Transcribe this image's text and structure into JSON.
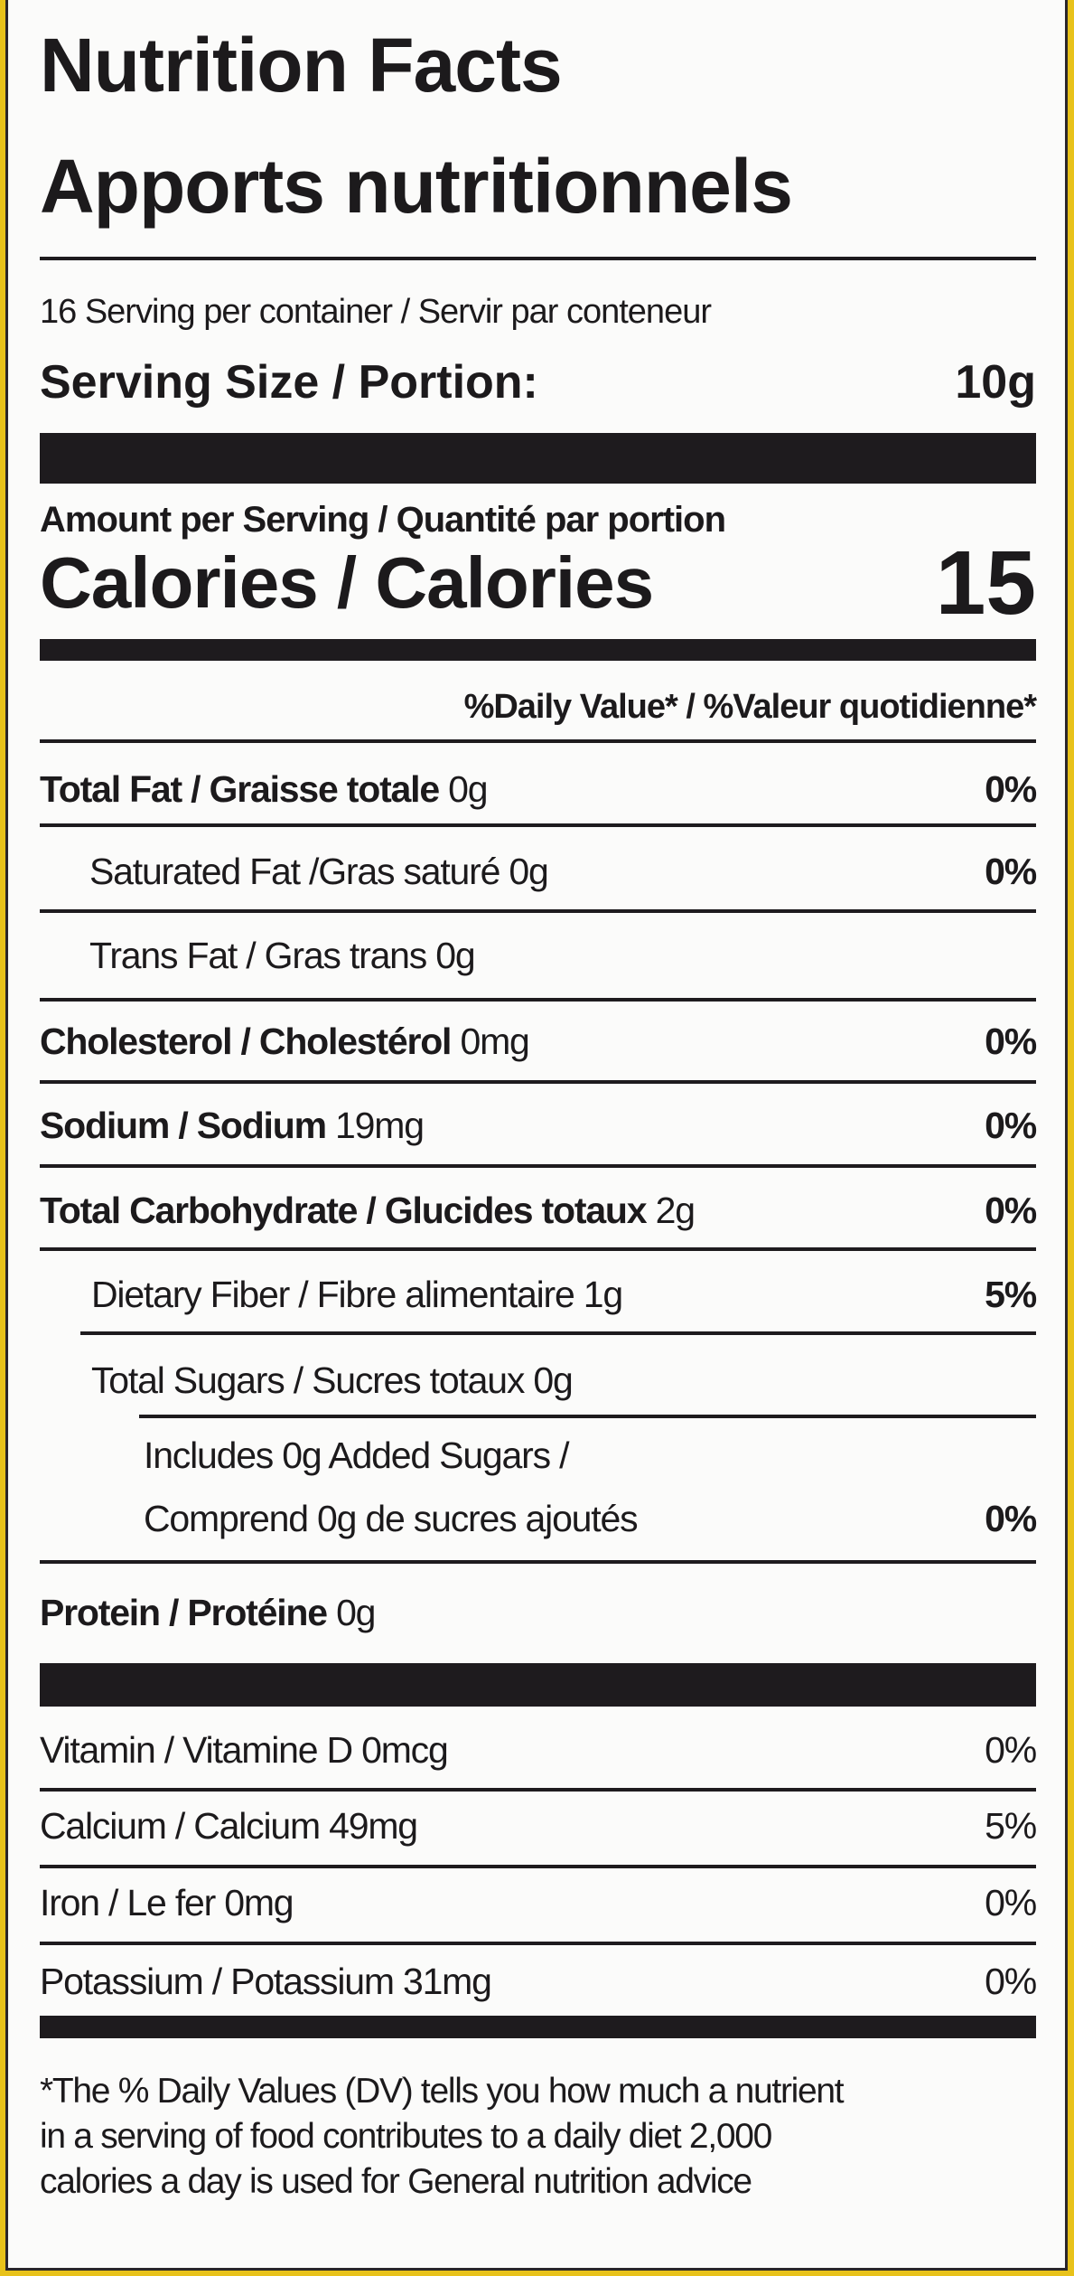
{
  "header": {
    "title_en": "Nutrition Facts",
    "title_fr": "Apports nutritionnels"
  },
  "serving": {
    "per_container": "16 Serving per container / Servir par conteneur",
    "size_label": "Serving Size / Portion:",
    "size_value": "10g"
  },
  "calories": {
    "amount_label": "Amount per Serving / Quantité par portion",
    "label": "Calories / Calories",
    "value": "15"
  },
  "dv_header": "%Daily Value* / %Valeur quotidienne*",
  "nutrients": [
    {
      "label": "Total Fat / Graisse totale",
      "amount": "0g",
      "dv": "0%"
    },
    {
      "label": "Saturated Fat /Gras saturé",
      "amount": "0g",
      "dv": "0%"
    },
    {
      "label": "Trans Fat / Gras trans",
      "amount": "0g",
      "dv": ""
    },
    {
      "label": "Cholesterol / Cholestérol",
      "amount": "0mg",
      "dv": "0%"
    },
    {
      "label": "Sodium / Sodium",
      "amount": "19mg",
      "dv": "0%"
    },
    {
      "label": "Total Carbohydrate / Glucides totaux",
      "amount": "2g",
      "dv": "0%"
    },
    {
      "label": "Dietary Fiber /  Fibre alimentaire",
      "amount": "1g",
      "dv": "5%"
    },
    {
      "label": "Total Sugars / Sucres totaux",
      "amount": "0g",
      "dv": ""
    },
    {
      "label_line1": "Includes 0g Added Sugars /",
      "label_line2": "Comprend 0g de sucres ajoutés",
      "dv": "0%"
    },
    {
      "label": "Protein / Protéine",
      "amount": "0g"
    }
  ],
  "vitamins": [
    {
      "label": "Vitamin / Vitamine D 0mcg",
      "dv": "0%"
    },
    {
      "label": "Calcium / Calcium 49mg",
      "dv": "5%"
    },
    {
      "label": "Iron / Le fer 0mg",
      "dv": "0%"
    },
    {
      "label": "Potassium / Potassium 31mg",
      "dv": "0%"
    }
  ],
  "footnote": [
    "*The % Daily Values (DV) tells you how much a nutrient",
    "in a serving of food contributes to a daily diet 2,000",
    "calories a day is used for General nutrition advice"
  ]
}
